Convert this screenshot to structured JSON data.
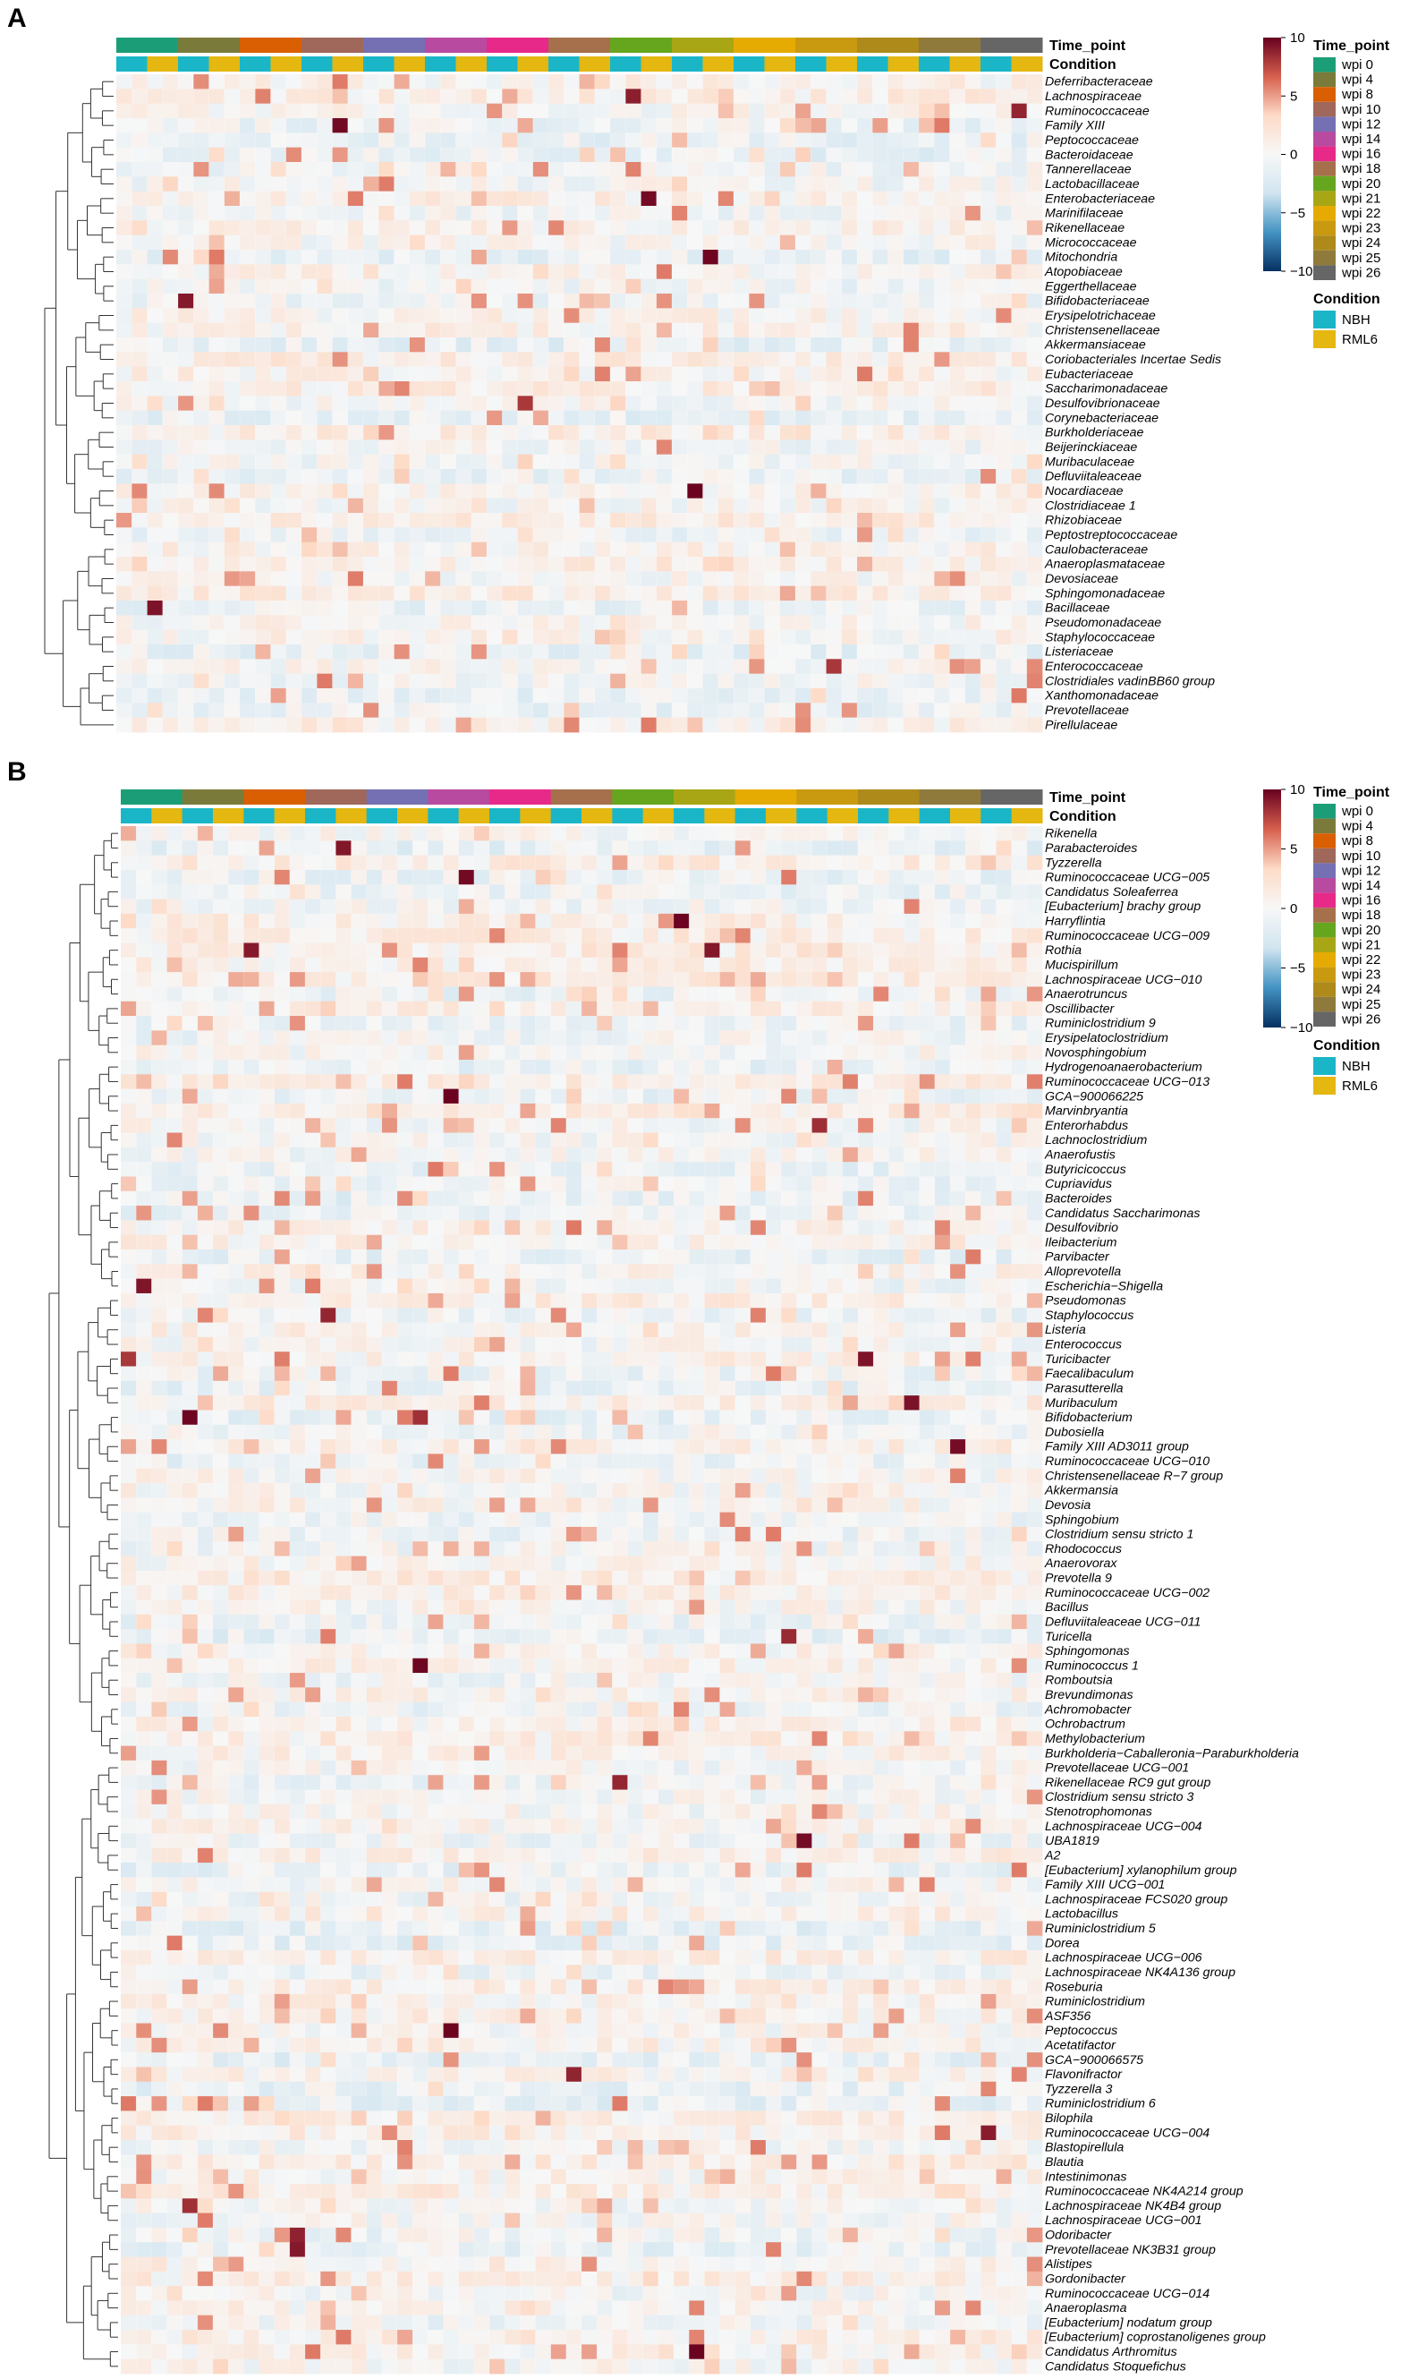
{
  "chart_data": [
    {
      "panel": "A",
      "type": "heatmap",
      "annotation_labels": [
        "Time_point",
        "Condition"
      ],
      "columns_per_group": 4,
      "rows": [
        "Deferribacteraceae",
        "Lachnospiraceae",
        "Ruminococcaceae",
        "Family XIII",
        "Peptococcaceae",
        "Bacteroidaceae",
        "Tannerellaceae",
        "Lactobacillaceae",
        "Enterobacteriaceae",
        "Marinifilaceae",
        "Rikenellaceae",
        "Micrococcaceae",
        "Mitochondria",
        "Atopobiaceae",
        "Eggerthellaceae",
        "Bifidobacteriaceae",
        "Erysipelotrichaceae",
        "Christensenellaceae",
        "Akkermansiaceae",
        "Coriobacteriales Incertae Sedis",
        "Eubacteriaceae",
        "Saccharimonadaceae",
        "Desulfovibrionaceae",
        "Corynebacteriaceae",
        "Burkholderiaceae",
        "Beijerinckiaceae",
        "Muribaculaceae",
        "Defluviitaleaceae",
        "Nocardiaceae",
        "Clostridiaceae 1",
        "Rhizobiaceae",
        "Peptostreptococcaceae",
        "Caulobacteraceae",
        "Anaeroplasmataceae",
        "Devosiaceae",
        "Sphingomonadaceae",
        "Bacillaceae",
        "Pseudomonadaceae",
        "Staphylococcaceae",
        "Listeriaceae",
        "Enterococcaceae",
        "Clostridiales vadinBB60 group",
        "Xanthomonadaceae",
        "Prevotellaceae",
        "Pirellulaceae"
      ],
      "scale": {
        "min": -10,
        "max": 10,
        "ticks": [
          "10",
          "5",
          "0",
          "−5",
          "−10"
        ],
        "colors": [
          "#053061",
          "#4393c3",
          "#d1e5f0",
          "#f7f7f7",
          "#fddbc7",
          "#d6604d",
          "#67001f"
        ]
      }
    },
    {
      "panel": "B",
      "type": "heatmap",
      "annotation_labels": [
        "Time_point",
        "Condition"
      ],
      "columns_per_group": 4,
      "rows": [
        "Rikenella",
        "Parabacteroides",
        "Tyzzerella",
        "Ruminococcaceae UCG−005",
        "Candidatus Soleaferrea",
        "[Eubacterium] brachy group",
        "Harryflintia",
        "Ruminococcaceae UCG−009",
        "Rothia",
        "Mucispirillum",
        "Lachnospiraceae UCG−010",
        "Anaerotruncus",
        "Oscillibacter",
        "Ruminiclostridium 9",
        "Erysipelatoclostridium",
        "Novosphingobium",
        "Hydrogenoanaerobacterium",
        "Ruminococcaceae UCG−013",
        "GCA−900066225",
        "Marvinbryantia",
        "Enterorhabdus",
        "Lachnoclostridium",
        "Anaerofustis",
        "Butyricicoccus",
        "Cupriavidus",
        "Bacteroides",
        "Candidatus Saccharimonas",
        "Desulfovibrio",
        "Ileibacterium",
        "Parvibacter",
        "Alloprevotella",
        "Escherichia−Shigella",
        "Pseudomonas",
        "Staphylococcus",
        "Listeria",
        "Enterococcus",
        "Turicibacter",
        "Faecalibaculum",
        "Parasutterella",
        "Muribaculum",
        "Bifidobacterium",
        "Dubosiella",
        "Family XIII AD3011 group",
        "Ruminococcaceae UCG−010",
        "Christensenellaceae R−7 group",
        "Akkermansia",
        "Devosia",
        "Sphingobium",
        "Clostridium sensu stricto 1",
        "Rhodococcus",
        "Anaerovorax",
        "Prevotella 9",
        "Ruminococcaceae UCG−002",
        "Bacillus",
        "Defluviitaleaceae UCG−011",
        "Turicella",
        "Sphingomonas",
        "Ruminococcus 1",
        "Romboutsia",
        "Brevundimonas",
        "Achromobacter",
        "Ochrobactrum",
        "Methylobacterium",
        "Burkholderia−Caballeronia−Paraburkholderia",
        "Prevotellaceae UCG−001",
        "Rikenellaceae RC9 gut group",
        "Clostridium sensu stricto 3",
        "Stenotrophomonas",
        "Lachnospiraceae UCG−004",
        "UBA1819",
        "A2",
        "[Eubacterium] xylanophilum group",
        "Family XIII UCG−001",
        "Lachnospiraceae FCS020 group",
        "Lactobacillus",
        "Ruminiclostridium 5",
        "Dorea",
        "Lachnospiraceae UCG−006",
        "Lachnospiraceae NK4A136 group",
        "Roseburia",
        "Ruminiclostridium",
        "ASF356",
        "Peptococcus",
        "Acetatifactor",
        "GCA−900066575",
        "Flavonifractor",
        "Tyzzerella 3",
        "Ruminiclostridium 6",
        "Bilophila",
        "Ruminococcaceae UCG−004",
        "Blastopirellula",
        "Blautia",
        "Intestinimonas",
        "Ruminococcaceae NK4A214 group",
        "Lachnospiraceae NK4B4 group",
        "Lachnospiraceae UCG−001",
        "Odoribacter",
        "Prevotellaceae NK3B31 group",
        "Alistipes",
        "Gordonibacter",
        "Ruminococcaceae UCG−014",
        "Anaeroplasma",
        "[Eubacterium] nodatum group",
        "[Eubacterium] coprostanoligenes group",
        "Candidatus Arthromitus",
        "Candidatus Stoquefichus"
      ],
      "scale": {
        "min": -10,
        "max": 10,
        "ticks": [
          "10",
          "5",
          "0",
          "−5",
          "−10"
        ],
        "colors": [
          "#053061",
          "#4393c3",
          "#d1e5f0",
          "#f7f7f7",
          "#fddbc7",
          "#d6604d",
          "#67001f"
        ]
      }
    }
  ],
  "legend": {
    "time_title": "Time_point",
    "time_points": [
      {
        "label": "wpi 0",
        "color": "#1b9e77"
      },
      {
        "label": "wpi 4",
        "color": "#7a7b3a"
      },
      {
        "label": "wpi 8",
        "color": "#d95f02"
      },
      {
        "label": "wpi 10",
        "color": "#a0685a"
      },
      {
        "label": "wpi 12",
        "color": "#7570b3"
      },
      {
        "label": "wpi 14",
        "color": "#b84aa0"
      },
      {
        "label": "wpi 16",
        "color": "#e7298a"
      },
      {
        "label": "wpi 18",
        "color": "#a5704b"
      },
      {
        "label": "wpi 20",
        "color": "#66a61e"
      },
      {
        "label": "wpi 21",
        "color": "#a8a614"
      },
      {
        "label": "wpi 22",
        "color": "#e6ab02"
      },
      {
        "label": "wpi 23",
        "color": "#c99a10"
      },
      {
        "label": "wpi 24",
        "color": "#ad8a1a"
      },
      {
        "label": "wpi 25",
        "color": "#8f7a3c"
      },
      {
        "label": "wpi 26",
        "color": "#666666"
      }
    ],
    "condition_title": "Condition",
    "conditions": [
      {
        "label": "NBH",
        "color": "#1ab6c8"
      },
      {
        "label": "RML6",
        "color": "#e4b711"
      }
    ]
  }
}
